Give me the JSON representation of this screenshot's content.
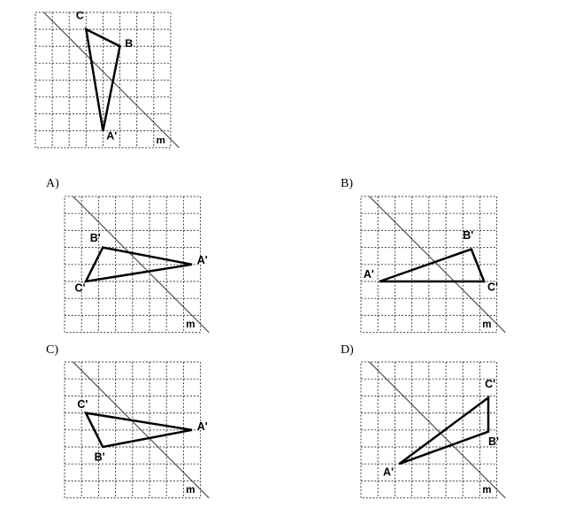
{
  "mirror_label": "m",
  "original": {
    "labels": {
      "A": "A'",
      "B": "B",
      "C": "C"
    }
  },
  "options": [
    {
      "letter": "A)",
      "labels": {
        "A": "A'",
        "B": "B'",
        "C": "C'"
      }
    },
    {
      "letter": "B)",
      "labels": {
        "A": "A'",
        "B": "B'",
        "C": "C'"
      }
    },
    {
      "letter": "C)",
      "labels": {
        "A": "A'",
        "B": "B'",
        "C": "C'"
      }
    },
    {
      "letter": "D)",
      "labels": {
        "A": "A'",
        "B": "B'",
        "C": "C'"
      }
    }
  ]
}
